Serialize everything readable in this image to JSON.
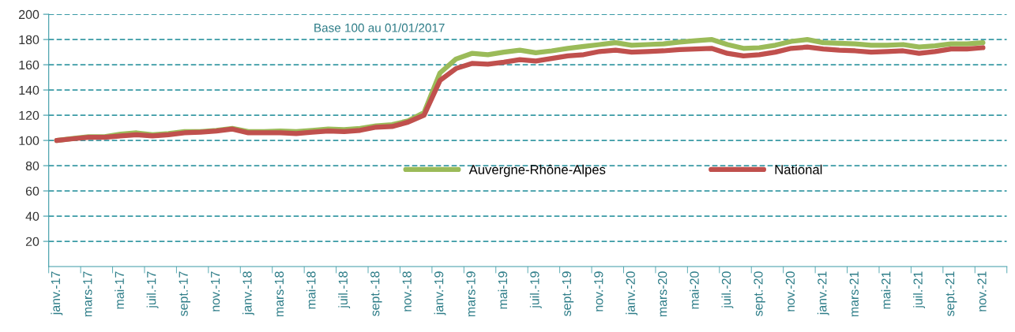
{
  "chart_data": {
    "type": "line",
    "categories": [
      "janv.-17",
      null,
      "mars-17",
      null,
      "mai-17",
      null,
      "juil.-17",
      null,
      "sept.-17",
      null,
      "nov.-17",
      null,
      "janv.-18",
      null,
      "mars-18",
      null,
      "mai-18",
      null,
      "juil.-18",
      null,
      "sept.-18",
      null,
      "nov.-18",
      null,
      "janv.-19",
      null,
      "mars-19",
      null,
      "mai-19",
      null,
      "juil.-19",
      null,
      "sept.-19",
      null,
      "nov.-19",
      null,
      "janv.-20",
      null,
      "mars-20",
      null,
      "mai-20",
      null,
      "juil.-20",
      null,
      "sept.-20",
      null,
      "nov.-20",
      null,
      "janv.-21",
      null,
      "mars-21",
      null,
      "mai-21",
      null,
      "juil.-21",
      null,
      "sept.-21",
      null,
      "nov.-21",
      null
    ],
    "series": [
      {
        "name": "Auvergne-Rhône-Alpes",
        "color": "#9bbb59",
        "values": [
          100,
          101.5,
          103,
          103,
          105,
          106,
          104.5,
          105.5,
          107,
          107,
          108,
          109.5,
          107,
          107,
          107.5,
          107,
          108,
          109,
          108.5,
          109.5,
          111.5,
          112.5,
          115.5,
          122,
          153.5,
          164.5,
          169,
          168,
          170,
          171.5,
          169.5,
          171,
          173,
          174.5,
          176,
          177.5,
          175.5,
          176,
          176.5,
          178,
          179,
          180,
          176,
          173,
          173.5,
          175.5,
          178.5,
          180,
          177.5,
          177,
          176.5,
          175.5,
          175.5,
          176,
          174,
          175,
          176.5,
          176.5,
          177.5,
          null
        ]
      },
      {
        "name": "National",
        "color": "#c0504d",
        "values": [
          100,
          101.3,
          102.5,
          102.5,
          103.5,
          104.5,
          103.5,
          104.5,
          106,
          106.5,
          107.5,
          109,
          106,
          106,
          106,
          105.5,
          106.5,
          107.5,
          107,
          108,
          110.5,
          111,
          114.5,
          120,
          147.5,
          157,
          161,
          160.5,
          162,
          164,
          163,
          165,
          167,
          168,
          170.5,
          171.5,
          170,
          170.5,
          171,
          172,
          172.5,
          173,
          169,
          167,
          168,
          170,
          173,
          174,
          172.5,
          171.5,
          171,
          170,
          170.5,
          171,
          169,
          170.5,
          172.5,
          172.5,
          173.5,
          null
        ]
      }
    ],
    "ylim": [
      0,
      200
    ],
    "yticks": [
      20,
      40,
      60,
      80,
      100,
      120,
      140,
      160,
      180,
      200
    ],
    "grid": "y",
    "legend": "center right",
    "marker": "none",
    "line_style": "solid",
    "annotations": [
      "Base 100 au 01/01/2017"
    ]
  }
}
